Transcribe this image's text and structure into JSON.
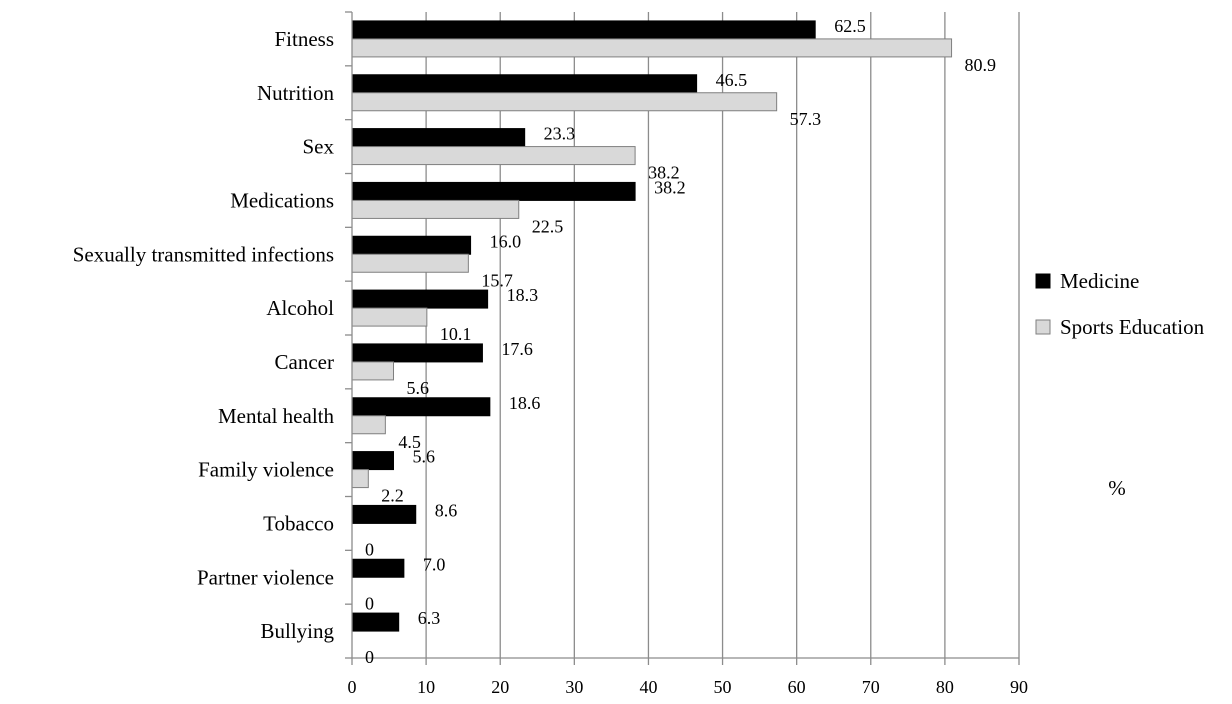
{
  "chart_data": {
    "type": "bar",
    "orientation": "horizontal",
    "categories": [
      "Fitness",
      "Nutrition",
      "Sex",
      "Medications",
      "Sexually transmitted infections",
      "Alcohol",
      "Cancer",
      "Mental health",
      "Family violence",
      "Tobacco",
      "Partner violence",
      "Bullying"
    ],
    "series": [
      {
        "name": "Medicine",
        "values": [
          62.5,
          46.5,
          23.3,
          38.2,
          16.0,
          18.3,
          17.6,
          18.6,
          5.6,
          8.6,
          7.0,
          6.3
        ],
        "labels": [
          "62.5",
          "46.5",
          "23.3",
          "38.2",
          "16.0",
          "18.3",
          "17.6",
          "18.6",
          "5.6",
          "8.6",
          "7.0",
          "6.3"
        ],
        "color": "#000000"
      },
      {
        "name": "Sports Education",
        "values": [
          80.9,
          57.3,
          38.2,
          22.5,
          15.7,
          10.1,
          5.6,
          4.5,
          2.2,
          0,
          0,
          0
        ],
        "labels": [
          "80.9",
          "57.3",
          "38.2",
          "22.5",
          "15.7",
          "10.1",
          "5.6",
          "4.5",
          "2.2",
          "0",
          "0",
          "0"
        ],
        "color": "#d9d9d9"
      }
    ],
    "title": "",
    "xlabel": "%",
    "ylabel": "",
    "xlim": [
      0,
      90
    ],
    "xticks": [
      0,
      10,
      20,
      30,
      40,
      50,
      60,
      70,
      80,
      90
    ],
    "grid": true,
    "legend_position": "right"
  }
}
